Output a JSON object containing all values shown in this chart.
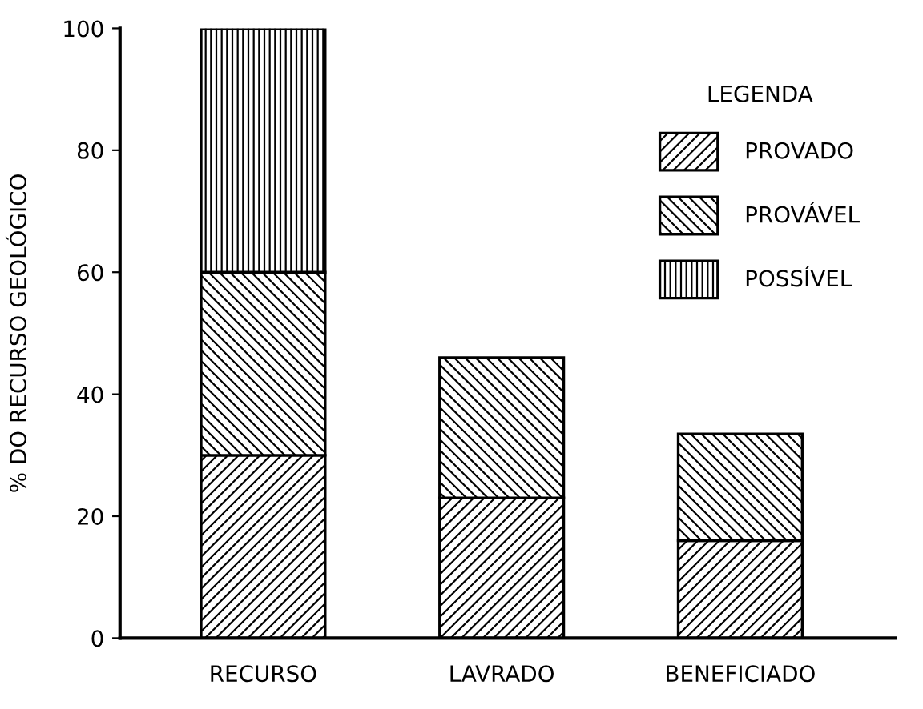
{
  "chart_data": {
    "type": "bar",
    "stacked": true,
    "ylabel": "% DO RECURSO GEOLÓGICO",
    "legend_title": "LEGENDA",
    "legend": "top right",
    "categories": [
      "RECURSO",
      "LAVRADO",
      "BENEFICIADO"
    ],
    "series": [
      {
        "name": "PROVADO",
        "color": "#000000",
        "values": [
          30,
          23,
          16
        ]
      },
      {
        "name": "PROVÁVEL",
        "color": "#000000",
        "values": [
          30,
          23,
          17.5
        ]
      },
      {
        "name": "POSSÍVEL",
        "color": "#000000",
        "values": [
          40,
          null,
          null
        ]
      }
    ],
    "ylim": [
      0,
      100
    ],
    "yticks": [
      0,
      20,
      40,
      60,
      80,
      100
    ],
    "grid": false
  }
}
